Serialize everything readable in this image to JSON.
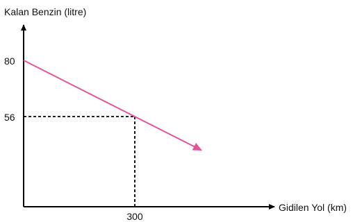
{
  "chart_data": {
    "type": "line",
    "ylabel": "Kalan Benzin (litre)",
    "xlabel": "Gidilen Yol (km)",
    "yticks": [
      "80",
      "56"
    ],
    "xticks": [
      "300"
    ],
    "series": [
      {
        "x": [
          0,
          300
        ],
        "y": [
          80,
          56
        ]
      }
    ],
    "guides": {
      "x": 300,
      "y": 56
    },
    "xlim": [
      0,
      300
    ],
    "ylim": [
      0,
      80
    ],
    "grid": false,
    "colors": {
      "line": "#e2559b",
      "axis": "#000000",
      "guide": "#000000"
    }
  }
}
